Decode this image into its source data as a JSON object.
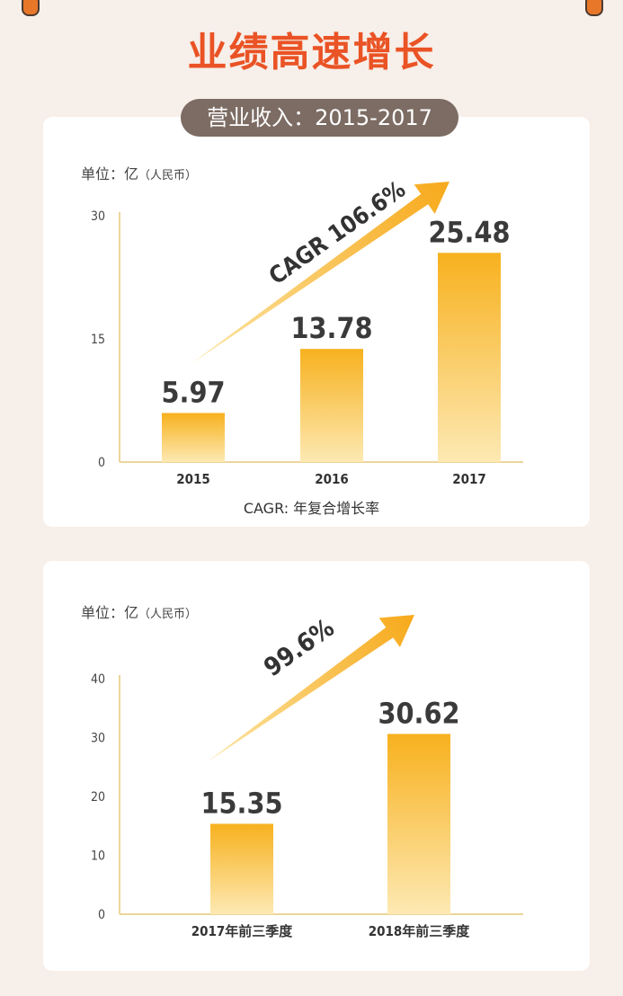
{
  "title": "业绩高速增长",
  "subtitle_pill": "营业收入：2015-2017",
  "cagr_note": "CAGR: 年复合增长率",
  "colors": {
    "accent": "#ea5325",
    "bar_top": "#f7b11e",
    "bar_bottom": "#fde9b3",
    "axis": "#ecd59a"
  },
  "chart_data": [
    {
      "type": "bar",
      "unit_label": "单位：亿",
      "unit_sub": "（人民币）",
      "categories": [
        "2015",
        "2016",
        "2017"
      ],
      "values": [
        5.97,
        13.78,
        25.48
      ],
      "value_labels": [
        "5.97",
        "13.78",
        "25.48"
      ],
      "y_ticks": [
        0,
        15,
        30
      ],
      "ylim": [
        0,
        30
      ],
      "annotation": "CAGR 106.6%"
    },
    {
      "type": "bar",
      "unit_label": "单位：亿",
      "unit_sub": "（人民币）",
      "categories": [
        "2017年前三季度",
        "2018年前三季度"
      ],
      "values": [
        15.35,
        30.62
      ],
      "value_labels": [
        "15.35",
        "30.62"
      ],
      "y_ticks": [
        0,
        10,
        20,
        30,
        40
      ],
      "ylim": [
        0,
        40
      ],
      "annotation": "99.6%"
    }
  ]
}
